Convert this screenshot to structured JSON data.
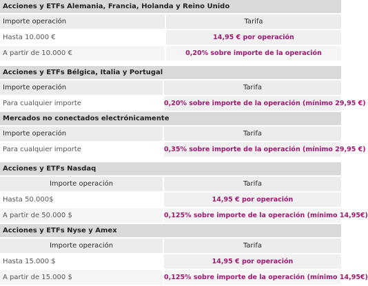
{
  "sections": [
    {
      "title": "Acciones y ETFs Alemania, Francia, Holanda y Reino Unido",
      "header": {
        "left": "Importe operación",
        "right": "Tarifa"
      },
      "rows": [
        {
          "left": "Hasta 10.000 €",
          "right": "14,95 € por operación"
        },
        {
          "left": "A partir de 10.000 €",
          "right": "0,20% sobre importe de la operación"
        }
      ]
    },
    {
      "title": "Acciones y ETFs Bélgica, Italia y Portugal",
      "header": {
        "left": "Importe operación",
        "right": "Tarifa"
      },
      "rows": [
        {
          "left": "Para cualquier importe",
          "right": "0,20% sobre importe de la operación (mínimo 29,95 €)"
        }
      ]
    },
    {
      "title": "Mercados no conectados electrónicamente",
      "header": {
        "left": "Importe operación",
        "right": "Tarifa"
      },
      "rows": [
        {
          "left": "Para cualquier importe",
          "right": "0,35% sobre importe de la operación (mínimo 29,95 €)"
        }
      ]
    },
    {
      "title": "Acciones y ETFs Nasdaq",
      "header": {
        "left": "Importe operación",
        "right": "Tarifa"
      },
      "rows": [
        {
          "left": "Hasta 50.000$",
          "right": "14,95 € por operación"
        },
        {
          "left": "A partir de 50.000 $",
          "right": "0,125% sobre importe de la operación (mínimo 14,95€)"
        }
      ]
    },
    {
      "title": "Acciones y ETFs Nyse y Amex",
      "header": {
        "left": "Importe operación",
        "right": "Tarifa"
      },
      "rows": [
        {
          "left": "Hasta 15.000 $",
          "right": "14,95 € por operación"
        },
        {
          "left": "A partir de 15.000 $",
          "right": "0,125% sobre importe de la operación (mínimo 14,95€)"
        }
      ]
    }
  ],
  "colors": {
    "section_bg": "#d9d9d9",
    "header_bg": "#ececec",
    "tarifa_text": "#a0186f"
  }
}
